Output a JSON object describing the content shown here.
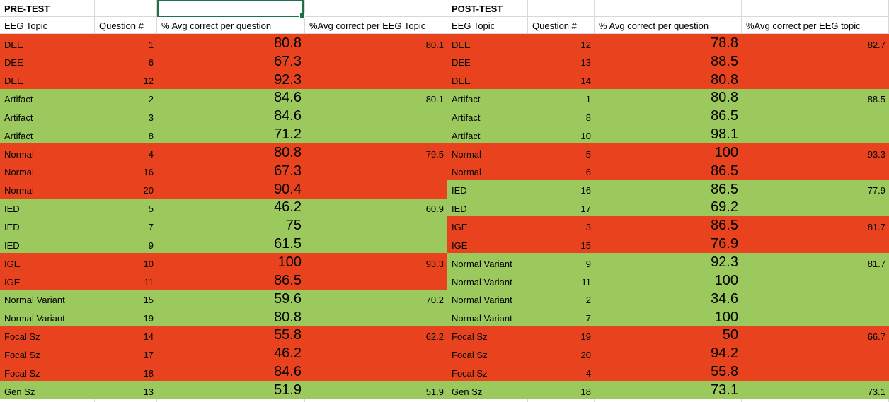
{
  "colors": {
    "red": "#e8431e",
    "green": "#9bc95e",
    "selection": "#1e7145",
    "gridline": "#d8d8d8"
  },
  "pretest": {
    "title": "PRE-TEST",
    "headers": [
      "EEG Topic",
      "Question #",
      "% Avg correct per question",
      "%Avg correct per EEG Topic"
    ],
    "rows": [
      {
        "topic": "DEE",
        "q": "1",
        "avg_q": "80.8",
        "avg_topic": "80.1",
        "color": "red"
      },
      {
        "topic": "DEE",
        "q": "6",
        "avg_q": "67.3",
        "avg_topic": "",
        "color": "red"
      },
      {
        "topic": "DEE",
        "q": "12",
        "avg_q": "92.3",
        "avg_topic": "",
        "color": "red"
      },
      {
        "topic": "Artifact",
        "q": "2",
        "avg_q": "84.6",
        "avg_topic": "80.1",
        "color": "green"
      },
      {
        "topic": "Artifact",
        "q": "3",
        "avg_q": "84.6",
        "avg_topic": "",
        "color": "green"
      },
      {
        "topic": "Artifact",
        "q": "8",
        "avg_q": "71.2",
        "avg_topic": "",
        "color": "green"
      },
      {
        "topic": "Normal",
        "q": "4",
        "avg_q": "80.8",
        "avg_topic": "79.5",
        "color": "red"
      },
      {
        "topic": "Normal",
        "q": "16",
        "avg_q": "67.3",
        "avg_topic": "",
        "color": "red"
      },
      {
        "topic": "Normal",
        "q": "20",
        "avg_q": "90.4",
        "avg_topic": "",
        "color": "red"
      },
      {
        "topic": "IED",
        "q": "5",
        "avg_q": "46.2",
        "avg_topic": "60.9",
        "color": "green"
      },
      {
        "topic": "IED",
        "q": "7",
        "avg_q": "75",
        "avg_topic": "",
        "color": "green"
      },
      {
        "topic": "IED",
        "q": "9",
        "avg_q": "61.5",
        "avg_topic": "",
        "color": "green"
      },
      {
        "topic": "IGE",
        "q": "10",
        "avg_q": "100",
        "avg_topic": "93.3",
        "color": "red"
      },
      {
        "topic": "IGE",
        "q": "11",
        "avg_q": "86.5",
        "avg_topic": "",
        "color": "red"
      },
      {
        "topic": "Normal Variant",
        "q": "15",
        "avg_q": "59.6",
        "avg_topic": "70.2",
        "color": "green"
      },
      {
        "topic": "Normal Variant",
        "q": "19",
        "avg_q": "80.8",
        "avg_topic": "",
        "color": "green"
      },
      {
        "topic": "Focal Sz",
        "q": "14",
        "avg_q": "55.8",
        "avg_topic": "62.2",
        "color": "red"
      },
      {
        "topic": "Focal Sz",
        "q": "17",
        "avg_q": "46.2",
        "avg_topic": "",
        "color": "red"
      },
      {
        "topic": "Focal Sz",
        "q": "18",
        "avg_q": "84.6",
        "avg_topic": "",
        "color": "red"
      },
      {
        "topic": "Gen Sz",
        "q": "13",
        "avg_q": "51.9",
        "avg_topic": "51.9",
        "color": "green"
      }
    ]
  },
  "posttest": {
    "title": "POST-TEST",
    "headers": [
      "EEG Topic",
      "Question #",
      "% Avg correct per question",
      "%Avg correct per EEG topic"
    ],
    "rows": [
      {
        "topic": "DEE",
        "q": "12",
        "avg_q": "78.8",
        "avg_topic": "82.7",
        "color": "red"
      },
      {
        "topic": "DEE",
        "q": "13",
        "avg_q": "88.5",
        "avg_topic": "",
        "color": "red"
      },
      {
        "topic": "DEE",
        "q": "14",
        "avg_q": "80.8",
        "avg_topic": "",
        "color": "red"
      },
      {
        "topic": "Artifact",
        "q": "1",
        "avg_q": "80.8",
        "avg_topic": "88.5",
        "color": "green"
      },
      {
        "topic": "Artifact",
        "q": "8",
        "avg_q": "86.5",
        "avg_topic": "",
        "color": "green"
      },
      {
        "topic": "Artifact",
        "q": "10",
        "avg_q": "98.1",
        "avg_topic": "",
        "color": "green"
      },
      {
        "topic": "Normal",
        "q": "5",
        "avg_q": "100",
        "avg_topic": "93.3",
        "color": "red"
      },
      {
        "topic": "Normal",
        "q": "6",
        "avg_q": "86.5",
        "avg_topic": "",
        "color": "red"
      },
      {
        "topic": "IED",
        "q": "16",
        "avg_q": "86.5",
        "avg_topic": "77.9",
        "color": "green"
      },
      {
        "topic": "IED",
        "q": "17",
        "avg_q": "69.2",
        "avg_topic": "",
        "color": "green"
      },
      {
        "topic": "IGE",
        "q": "3",
        "avg_q": "86.5",
        "avg_topic": "81.7",
        "color": "red"
      },
      {
        "topic": "IGE",
        "q": "15",
        "avg_q": "76.9",
        "avg_topic": "",
        "color": "red"
      },
      {
        "topic": "Normal Variant",
        "q": "9",
        "avg_q": "92.3",
        "avg_topic": "81.7",
        "color": "green"
      },
      {
        "topic": "Normal Variant",
        "q": "11",
        "avg_q": "100",
        "avg_topic": "",
        "color": "green"
      },
      {
        "topic": "Normal Variant",
        "q": "2",
        "avg_q": "34.6",
        "avg_topic": "",
        "color": "green"
      },
      {
        "topic": "Normal Variant",
        "q": "7",
        "avg_q": "100",
        "avg_topic": "",
        "color": "green"
      },
      {
        "topic": "Focal Sz",
        "q": "19",
        "avg_q": "50",
        "avg_topic": "66.7",
        "color": "red"
      },
      {
        "topic": "Focal Sz",
        "q": "20",
        "avg_q": "94.2",
        "avg_topic": "",
        "color": "red"
      },
      {
        "topic": "Focal Sz",
        "q": "4",
        "avg_q": "55.8",
        "avg_topic": "",
        "color": "red"
      },
      {
        "topic": "Gen Sz",
        "q": "18",
        "avg_q": "73.1",
        "avg_topic": "73.1",
        "color": "green"
      }
    ]
  }
}
